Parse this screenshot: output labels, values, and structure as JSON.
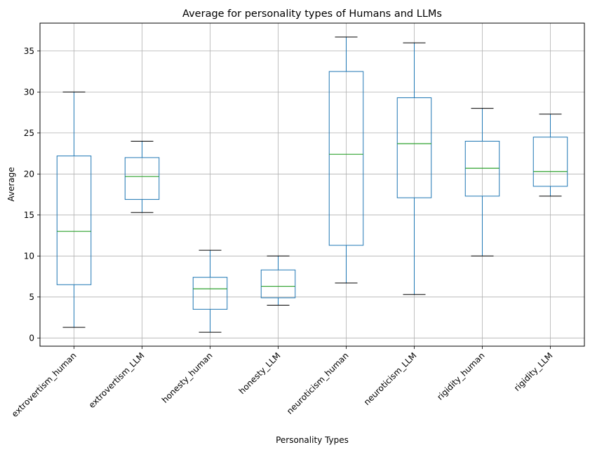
{
  "chart_data": {
    "type": "box",
    "title": "Average for personality types of Humans and LLMs",
    "xlabel": "Personality Types",
    "ylabel": "Average",
    "ylim": [
      -1,
      38.4
    ],
    "yticks": [
      0,
      5,
      10,
      15,
      20,
      25,
      30,
      35
    ],
    "grid": true,
    "colors": {
      "box": "#1f77b4",
      "median": "#2ca02c",
      "cap": "#000000",
      "grid": "#b0b0b0"
    },
    "categories": [
      "extrovertism_human",
      "extrovertism_LLM",
      "honesty_human",
      "honesty_LLM",
      "neuroticism_human",
      "neuroticism_LLM",
      "rigidity_human",
      "rigidity_LLM"
    ],
    "boxes": [
      {
        "min": 1.3,
        "q1": 6.5,
        "median": 13.0,
        "q3": 22.2,
        "max": 30.0
      },
      {
        "min": 15.3,
        "q1": 16.9,
        "median": 19.7,
        "q3": 22.0,
        "max": 24.0
      },
      {
        "min": 0.7,
        "q1": 3.5,
        "median": 6.0,
        "q3": 7.4,
        "max": 10.7
      },
      {
        "min": 4.0,
        "q1": 4.9,
        "median": 6.3,
        "q3": 8.3,
        "max": 10.0
      },
      {
        "min": 6.7,
        "q1": 11.3,
        "median": 22.4,
        "q3": 32.5,
        "max": 36.7
      },
      {
        "min": 5.3,
        "q1": 17.1,
        "median": 23.7,
        "q3": 29.3,
        "max": 36.0
      },
      {
        "min": 10.0,
        "q1": 17.3,
        "median": 20.7,
        "q3": 24.0,
        "max": 28.0
      },
      {
        "min": 17.3,
        "q1": 18.5,
        "median": 20.3,
        "q3": 24.5,
        "max": 27.3
      }
    ]
  }
}
